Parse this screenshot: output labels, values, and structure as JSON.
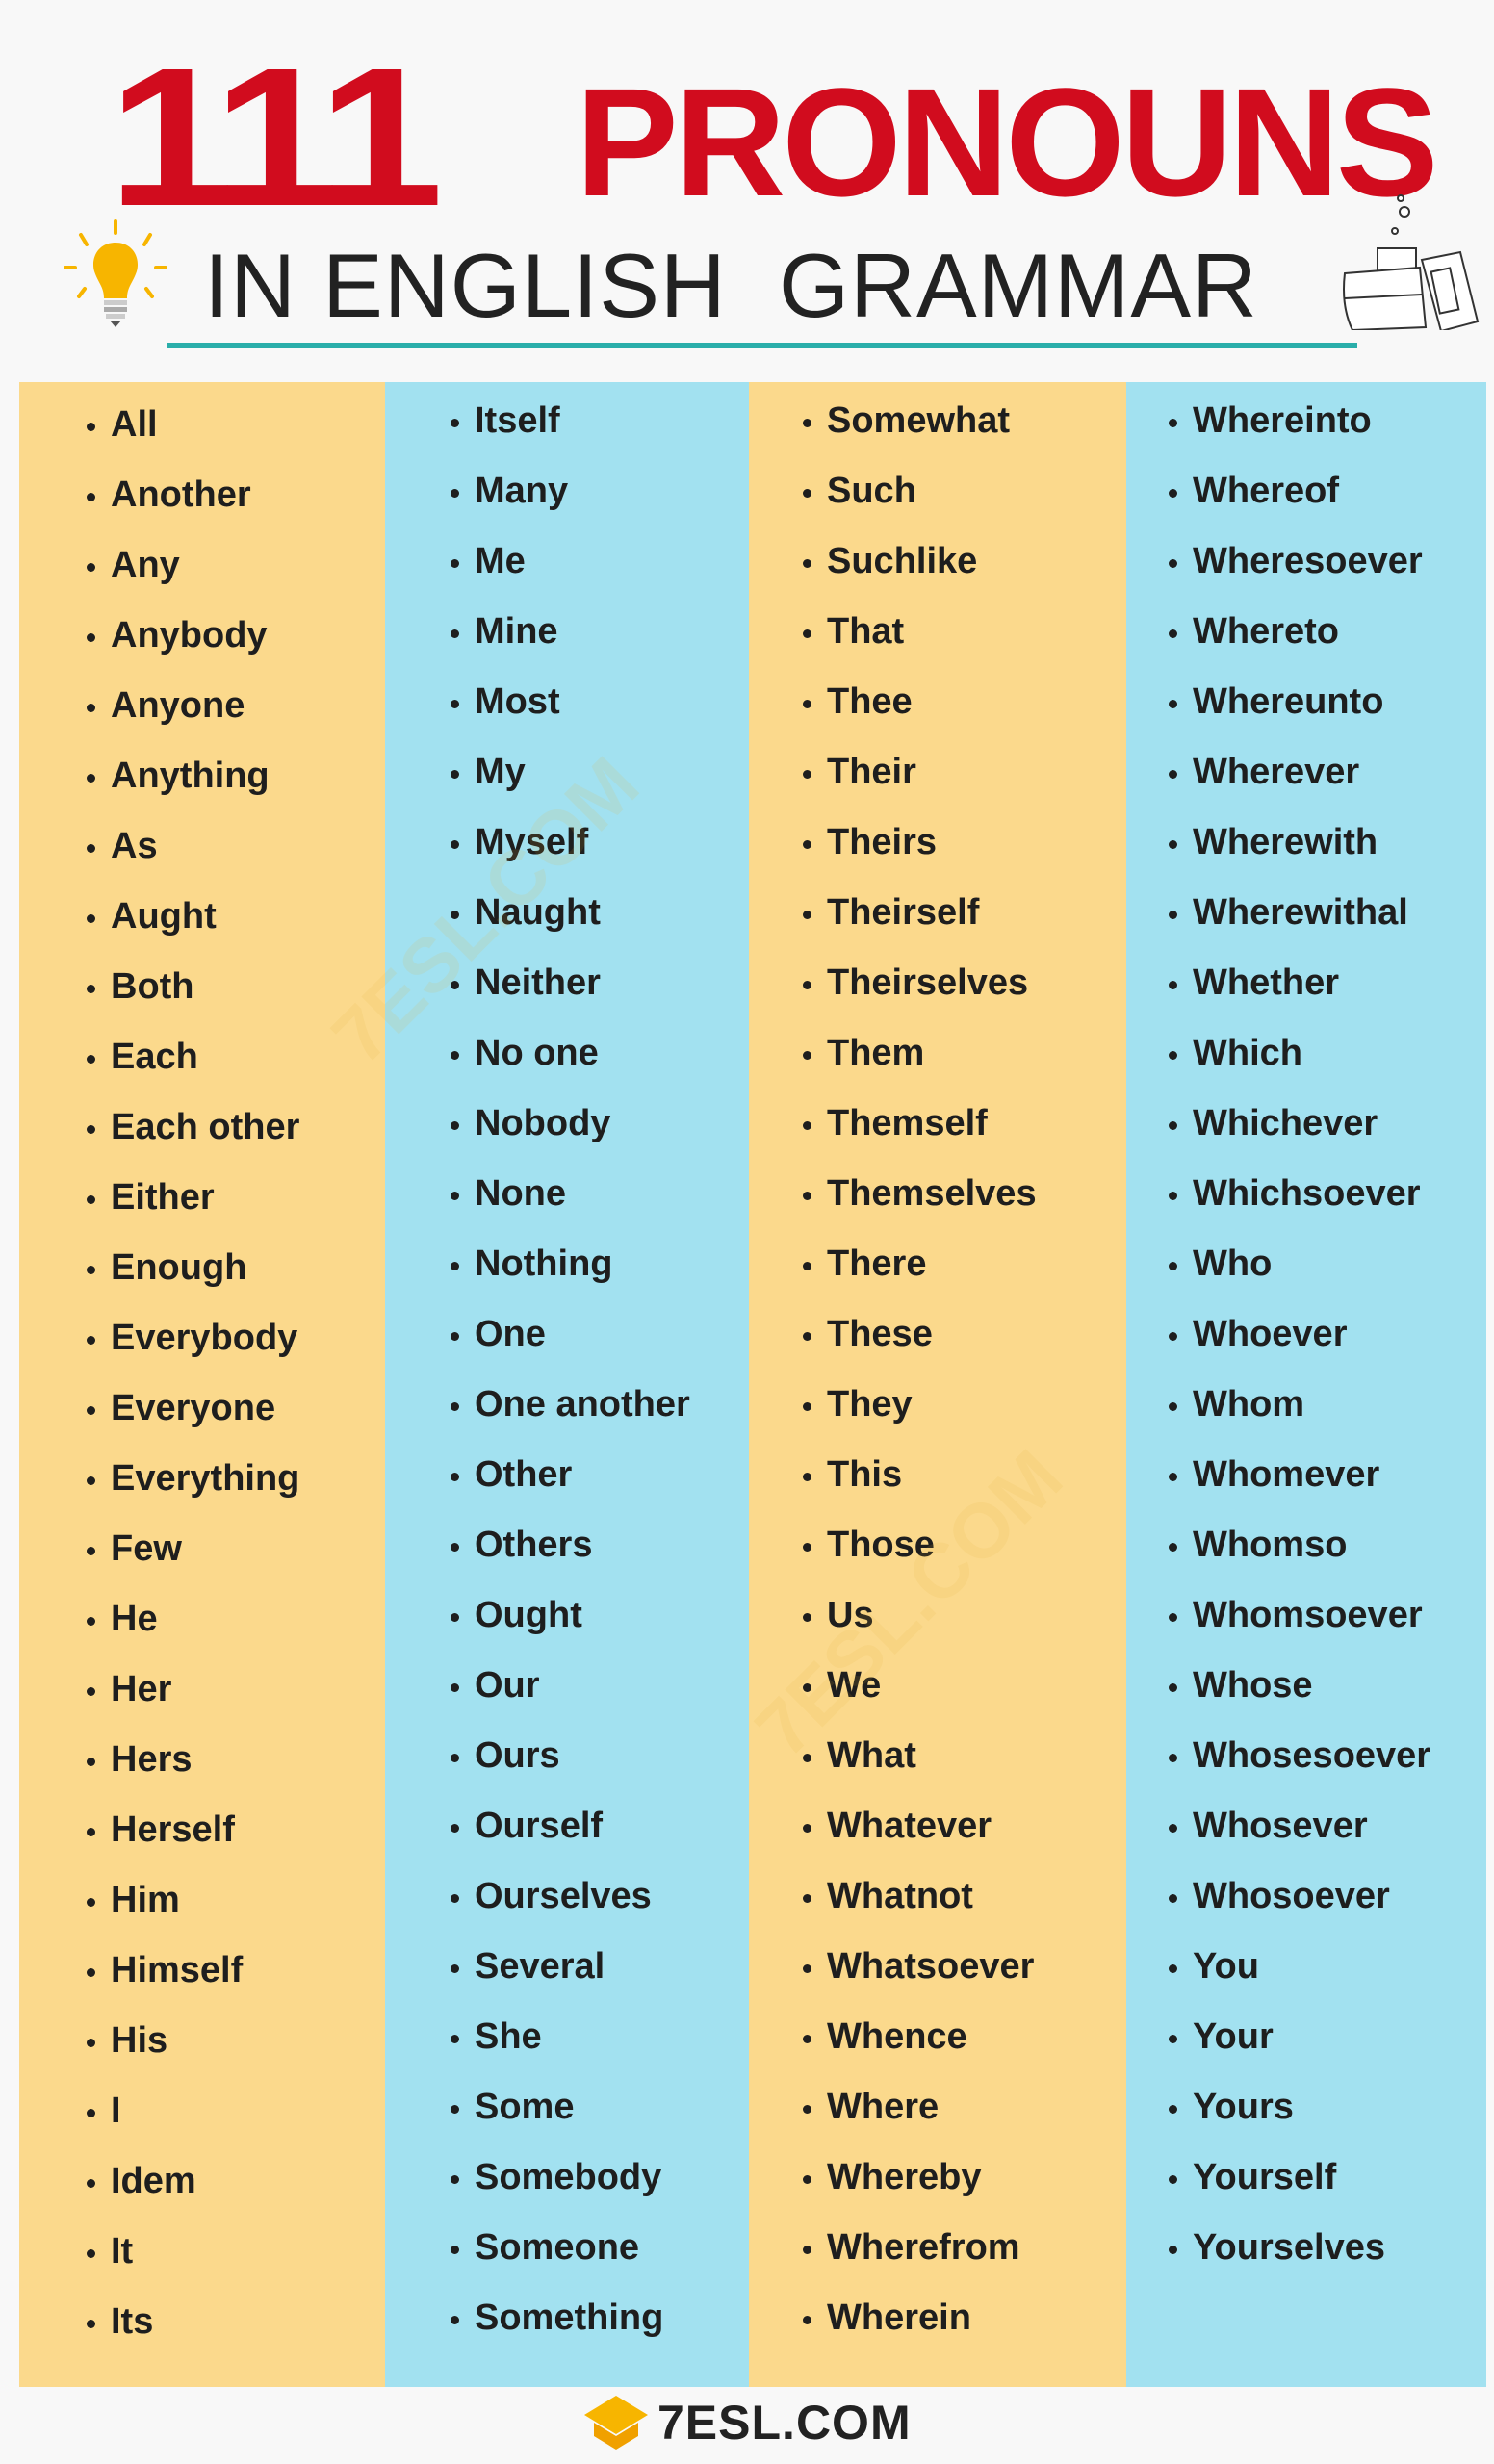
{
  "title": {
    "number": "111",
    "word": "PRONOUNS",
    "subtitle": "IN ENGLISH  GRAMMAR"
  },
  "colors": {
    "title_red": "#d10c1e",
    "rule_teal": "#2aaeaa",
    "column_yellow": "#fbd98c",
    "column_blue": "#a2e1f0"
  },
  "columns": [
    [
      "All",
      "Another",
      "Any",
      "Anybody",
      "Anyone",
      "Anything",
      "As",
      "Aught",
      "Both",
      "Each",
      "Each other",
      "Either",
      "Enough",
      "Everybody",
      "Everyone",
      "Everything",
      "Few",
      "He",
      "Her",
      "Hers",
      "Herself",
      "Him",
      "Himself",
      "His",
      "I",
      "Idem",
      "It",
      "Its"
    ],
    [
      "Itself",
      "Many",
      "Me",
      "Mine",
      "Most",
      "My",
      "Myself",
      "Naught",
      "Neither",
      "No one",
      "Nobody",
      "None",
      "Nothing",
      "One",
      "One another",
      "Other",
      "Others",
      "Ought",
      "Our",
      "Ours",
      "Ourself",
      "Ourselves",
      "Several",
      "She",
      "Some",
      "Somebody",
      "Someone",
      "Something"
    ],
    [
      "Somewhat",
      "Such",
      "Suchlike",
      "That",
      "Thee",
      "Their",
      "Theirs",
      "Theirself",
      "Theirselves",
      "Them",
      "Themself",
      "Themselves",
      "There",
      "These",
      "They",
      "This",
      "Those",
      "Us",
      "We",
      "What",
      "Whatever",
      "Whatnot",
      "Whatsoever",
      "Whence",
      "Where",
      "Whereby",
      "Wherefrom",
      "Wherein"
    ],
    [
      "Whereinto",
      "Whereof",
      "Wheresoever",
      "Whereto",
      "Whereunto",
      "Wherever",
      "Wherewith",
      "Wherewithal",
      "Whether",
      "Which",
      "Whichever",
      "Whichsoever",
      "Who",
      "Whoever",
      "Whom",
      "Whomever",
      "Whomso",
      "Whomsoever",
      "Whose",
      "Whosesoever",
      "Whosever",
      "Whosoever",
      "You",
      "Your",
      "Yours",
      "Yourself",
      "Yourselves"
    ]
  ],
  "footer": {
    "logo": "7ESL.COM",
    "logo_icon": "graduation-cap-icon"
  },
  "watermark": "7ESL.COM"
}
